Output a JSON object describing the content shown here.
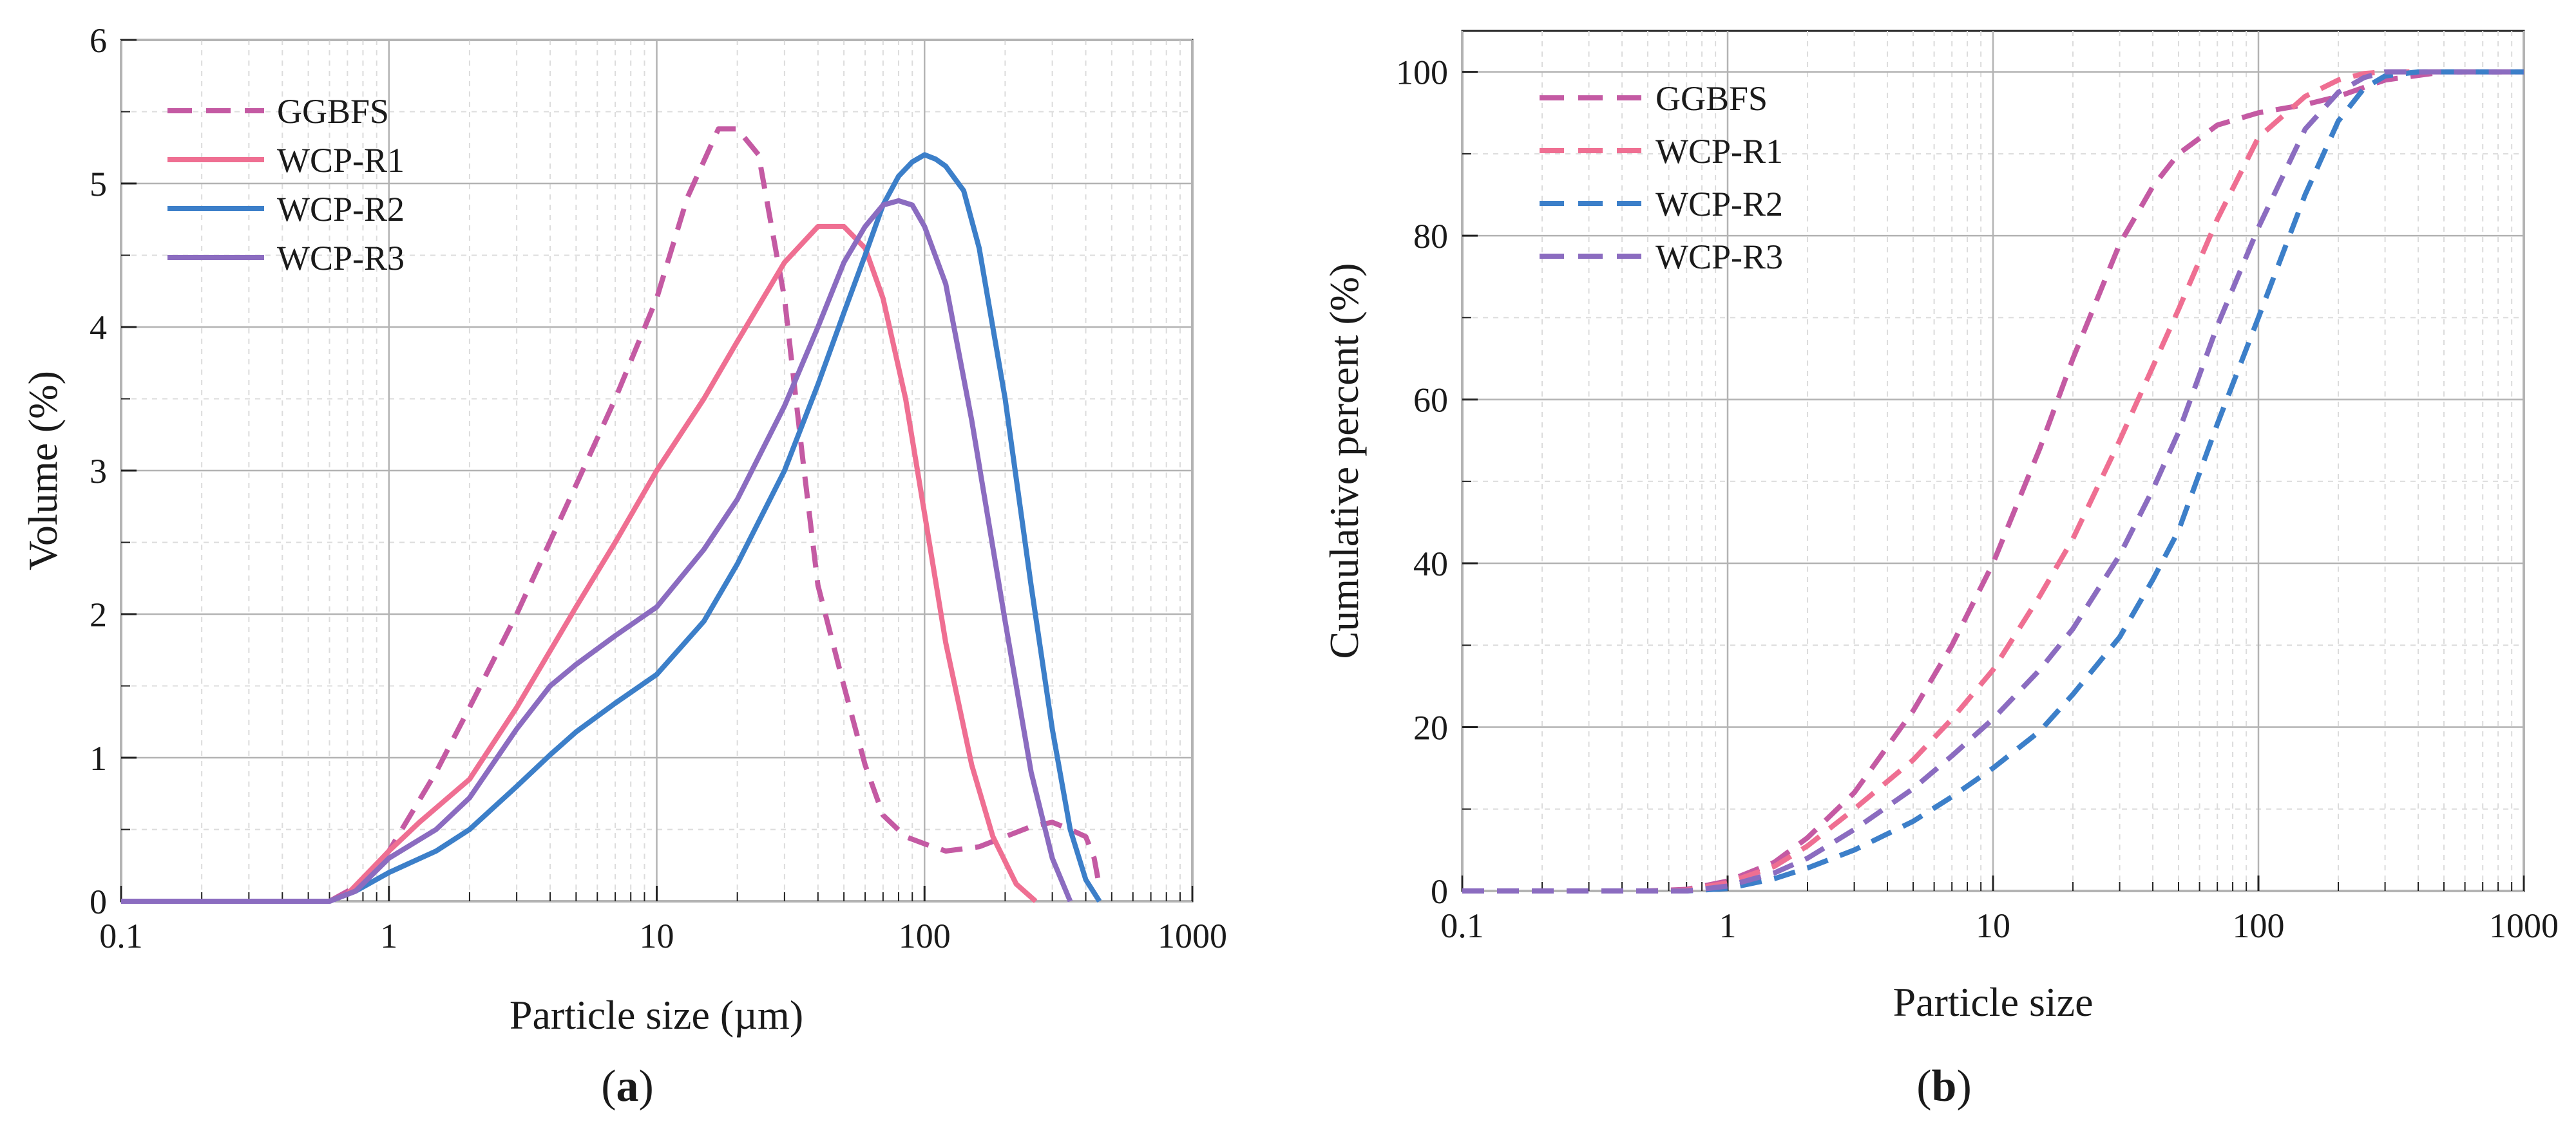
{
  "chart_data": [
    {
      "type": "line",
      "panel_label": "a",
      "xlabel": "Particle size (µm)",
      "ylabel": "Volume (%)",
      "xscale": "log",
      "xlim": [
        0.1,
        1000
      ],
      "ylim": [
        0,
        6
      ],
      "xticks": [
        "0.1",
        "1",
        "10",
        "100",
        "1000"
      ],
      "yticks": [
        "0",
        "1",
        "2",
        "3",
        "4",
        "5",
        "6"
      ],
      "legend_position": "top-left",
      "grid": true,
      "series": [
        {
          "name": "GGBFS",
          "color": "#c45aa3",
          "dashed": true,
          "x": [
            0.1,
            0.6,
            0.75,
            1.0,
            1.5,
            2.0,
            3.0,
            5.0,
            7.0,
            10,
            13,
            17,
            20,
            24,
            30,
            35,
            40,
            50,
            60,
            70,
            85,
            100,
            120,
            160,
            200,
            250,
            300,
            350,
            400,
            430,
            450
          ],
          "y": [
            0,
            0,
            0.1,
            0.35,
            0.9,
            1.35,
            2.0,
            2.9,
            3.5,
            4.2,
            4.9,
            5.38,
            5.38,
            5.2,
            4.2,
            3.1,
            2.2,
            1.5,
            0.95,
            0.6,
            0.45,
            0.4,
            0.35,
            0.38,
            0.45,
            0.52,
            0.55,
            0.5,
            0.45,
            0.3,
            0.1
          ]
        },
        {
          "name": "WCP-R1",
          "color": "#ef6f92",
          "dashed": false,
          "x": [
            0.1,
            0.6,
            0.7,
            1.0,
            1.3,
            2.0,
            3.0,
            5.0,
            7.0,
            10,
            15,
            20,
            30,
            40,
            50,
            60,
            70,
            85,
            100,
            120,
            150,
            180,
            220,
            260
          ],
          "y": [
            0,
            0,
            0.05,
            0.35,
            0.55,
            0.85,
            1.35,
            2.05,
            2.5,
            3.0,
            3.5,
            3.9,
            4.45,
            4.7,
            4.7,
            4.55,
            4.2,
            3.5,
            2.7,
            1.8,
            0.95,
            0.45,
            0.12,
            0
          ]
        },
        {
          "name": "WCP-R2",
          "color": "#3c7fc9",
          "dashed": false,
          "x": [
            0.1,
            0.6,
            0.75,
            1.0,
            1.5,
            2.0,
            3.0,
            4.0,
            5.0,
            7.0,
            10,
            15,
            20,
            30,
            40,
            50,
            60,
            70,
            80,
            90,
            100,
            110,
            120,
            140,
            160,
            200,
            250,
            300,
            350,
            400,
            450
          ],
          "y": [
            0,
            0,
            0.07,
            0.2,
            0.35,
            0.5,
            0.8,
            1.02,
            1.18,
            1.38,
            1.58,
            1.95,
            2.35,
            3.0,
            3.6,
            4.1,
            4.5,
            4.85,
            5.05,
            5.15,
            5.2,
            5.17,
            5.12,
            4.95,
            4.55,
            3.5,
            2.2,
            1.2,
            0.5,
            0.15,
            0
          ]
        },
        {
          "name": "WCP-R3",
          "color": "#8b6cc0",
          "dashed": false,
          "x": [
            0.1,
            0.6,
            0.75,
            1.0,
            1.5,
            2.0,
            3.0,
            4.0,
            5.0,
            7.0,
            10,
            15,
            20,
            30,
            40,
            50,
            60,
            70,
            80,
            90,
            100,
            120,
            150,
            200,
            250,
            300,
            350
          ],
          "y": [
            0,
            0,
            0.07,
            0.3,
            0.5,
            0.72,
            1.2,
            1.5,
            1.65,
            1.85,
            2.05,
            2.45,
            2.8,
            3.45,
            4.0,
            4.45,
            4.7,
            4.85,
            4.88,
            4.85,
            4.7,
            4.3,
            3.35,
            1.95,
            0.9,
            0.3,
            0
          ]
        }
      ]
    },
    {
      "type": "line",
      "panel_label": "b",
      "xlabel": "Particle size",
      "ylabel": "Cumulative percent (%)",
      "xscale": "log",
      "xlim": [
        0.1,
        1000
      ],
      "ylim": [
        0,
        105
      ],
      "xticks": [
        "0.1",
        "1",
        "10",
        "100",
        "1000"
      ],
      "yticks": [
        "0",
        "20",
        "40",
        "60",
        "80",
        "100"
      ],
      "legend_position": "top-left",
      "grid": true,
      "series": [
        {
          "name": "GGBFS",
          "color": "#c45aa3",
          "dashed": true,
          "x": [
            0.1,
            0.5,
            0.7,
            1.0,
            1.5,
            2.0,
            3.0,
            5.0,
            7.0,
            10,
            15,
            20,
            30,
            40,
            50,
            70,
            100,
            150,
            200,
            300,
            500,
            1000
          ],
          "y": [
            0,
            0,
            0.2,
            1.2,
            3.5,
            6.5,
            12,
            22,
            30,
            40,
            54,
            65,
            79,
            86,
            90,
            93.5,
            95,
            96,
            97,
            99,
            100,
            100
          ]
        },
        {
          "name": "WCP-R1",
          "color": "#ef6f92",
          "dashed": true,
          "x": [
            0.1,
            0.5,
            0.7,
            1.0,
            1.5,
            2.0,
            3.0,
            5.0,
            7.0,
            10,
            15,
            20,
            30,
            40,
            50,
            70,
            100,
            150,
            200,
            250,
            300,
            500,
            1000
          ],
          "y": [
            0,
            0,
            0.1,
            1.0,
            3.0,
            5.5,
            10,
            16,
            21,
            27,
            36,
            43,
            55,
            64,
            71,
            82,
            92,
            97,
            99,
            99.8,
            100,
            100,
            100
          ]
        },
        {
          "name": "WCP-R2",
          "color": "#3c7fc9",
          "dashed": true,
          "x": [
            0.1,
            0.5,
            0.7,
            1.0,
            1.5,
            2.0,
            3.0,
            5.0,
            7.0,
            10,
            15,
            20,
            30,
            40,
            50,
            70,
            100,
            150,
            200,
            250,
            300,
            400,
            500,
            1000
          ],
          "y": [
            0,
            0,
            0,
            0.3,
            1.5,
            2.8,
            5,
            8.5,
            11.5,
            15,
            19.5,
            24,
            31,
            38,
            44,
            57,
            70,
            85,
            94,
            98,
            99.5,
            100,
            100,
            100
          ]
        },
        {
          "name": "WCP-R3",
          "color": "#8b6cc0",
          "dashed": true,
          "x": [
            0.1,
            0.5,
            0.7,
            1.0,
            1.5,
            2.0,
            3.0,
            5.0,
            7.0,
            10,
            15,
            20,
            30,
            40,
            50,
            70,
            100,
            150,
            200,
            250,
            300,
            500,
            1000
          ],
          "y": [
            0,
            0,
            0,
            0.6,
            2.2,
            4,
            7.5,
            12.5,
            16.5,
            21,
            27,
            32,
            41,
            49,
            56,
            69,
            81,
            93,
            97.5,
            99.3,
            100,
            100,
            100
          ]
        }
      ]
    }
  ],
  "captions": [
    "(a)",
    "(b)"
  ]
}
